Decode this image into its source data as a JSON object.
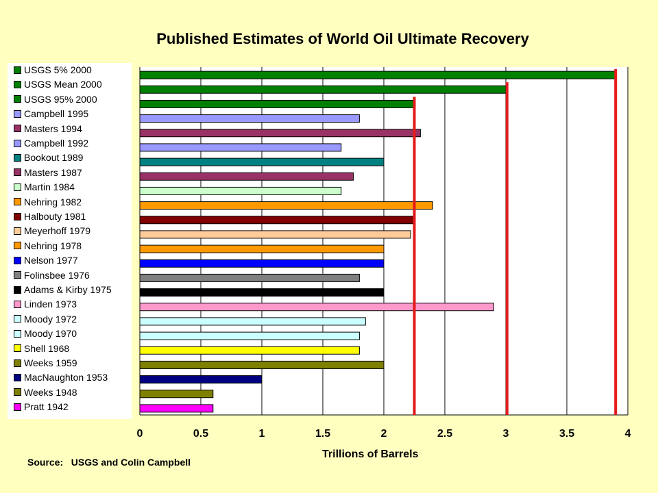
{
  "chart_data": {
    "type": "bar",
    "orientation": "horizontal",
    "title": "Published Estimates of World Oil Ultimate Recovery",
    "xlabel": "Trillions of Barrels",
    "xlim": [
      0,
      4
    ],
    "xticks": [
      "0",
      "0.5",
      "1",
      "1.5",
      "2",
      "2.5",
      "3",
      "3.5",
      "4"
    ],
    "grid": true,
    "legend_position": "left",
    "reference_lines": [
      2.25,
      3.01,
      3.9
    ],
    "reference_line_color": "#E31B1B",
    "bars": [
      {
        "label": "USGS 5% 2000",
        "value": 3.9,
        "color": "#008000"
      },
      {
        "label": "USGS Mean 2000",
        "value": 3.0,
        "color": "#008000"
      },
      {
        "label": "USGS 95% 2000",
        "value": 2.25,
        "color": "#008000"
      },
      {
        "label": "Campbell 1995",
        "value": 1.8,
        "color": "#9999FF"
      },
      {
        "label": "Masters 1994",
        "value": 2.3,
        "color": "#993366"
      },
      {
        "label": "Campbell 1992",
        "value": 1.65,
        "color": "#9999FF"
      },
      {
        "label": "Bookout 1989",
        "value": 2.0,
        "color": "#008080"
      },
      {
        "label": "Masters 1987",
        "value": 1.75,
        "color": "#993366"
      },
      {
        "label": "Martin 1984",
        "value": 1.65,
        "color": "#CCFFCC"
      },
      {
        "label": "Nehring 1982",
        "value": 2.4,
        "color": "#FF9900"
      },
      {
        "label": "Halbouty 1981",
        "value": 2.25,
        "color": "#800000"
      },
      {
        "label": "Meyerhoff 1979",
        "value": 2.22,
        "color": "#FFCC99"
      },
      {
        "label": "Nehring 1978",
        "value": 2.0,
        "color": "#FF9900"
      },
      {
        "label": "Nelson 1977",
        "value": 2.0,
        "color": "#0000FF"
      },
      {
        "label": "Folinsbee 1976",
        "value": 1.8,
        "color": "#808080"
      },
      {
        "label": "Adams & Kirby 1975",
        "value": 2.0,
        "color": "#000000"
      },
      {
        "label": "Linden 1973",
        "value": 2.9,
        "color": "#FF99CC"
      },
      {
        "label": "Moody 1972",
        "value": 1.85,
        "color": "#CCFFFF"
      },
      {
        "label": "Moody 1970",
        "value": 1.8,
        "color": "#CCFFFF"
      },
      {
        "label": "Shell 1968",
        "value": 1.8,
        "color": "#FFFF00"
      },
      {
        "label": "Weeks 1959",
        "value": 2.0,
        "color": "#808000"
      },
      {
        "label": "MacNaughton 1953",
        "value": 1.0,
        "color": "#000080"
      },
      {
        "label": "Weeks 1948",
        "value": 0.6,
        "color": "#808000"
      },
      {
        "label": "Pratt 1942",
        "value": 0.6,
        "color": "#FF00FF"
      }
    ]
  },
  "source_text": "Source:   USGS and Colin Campbell"
}
